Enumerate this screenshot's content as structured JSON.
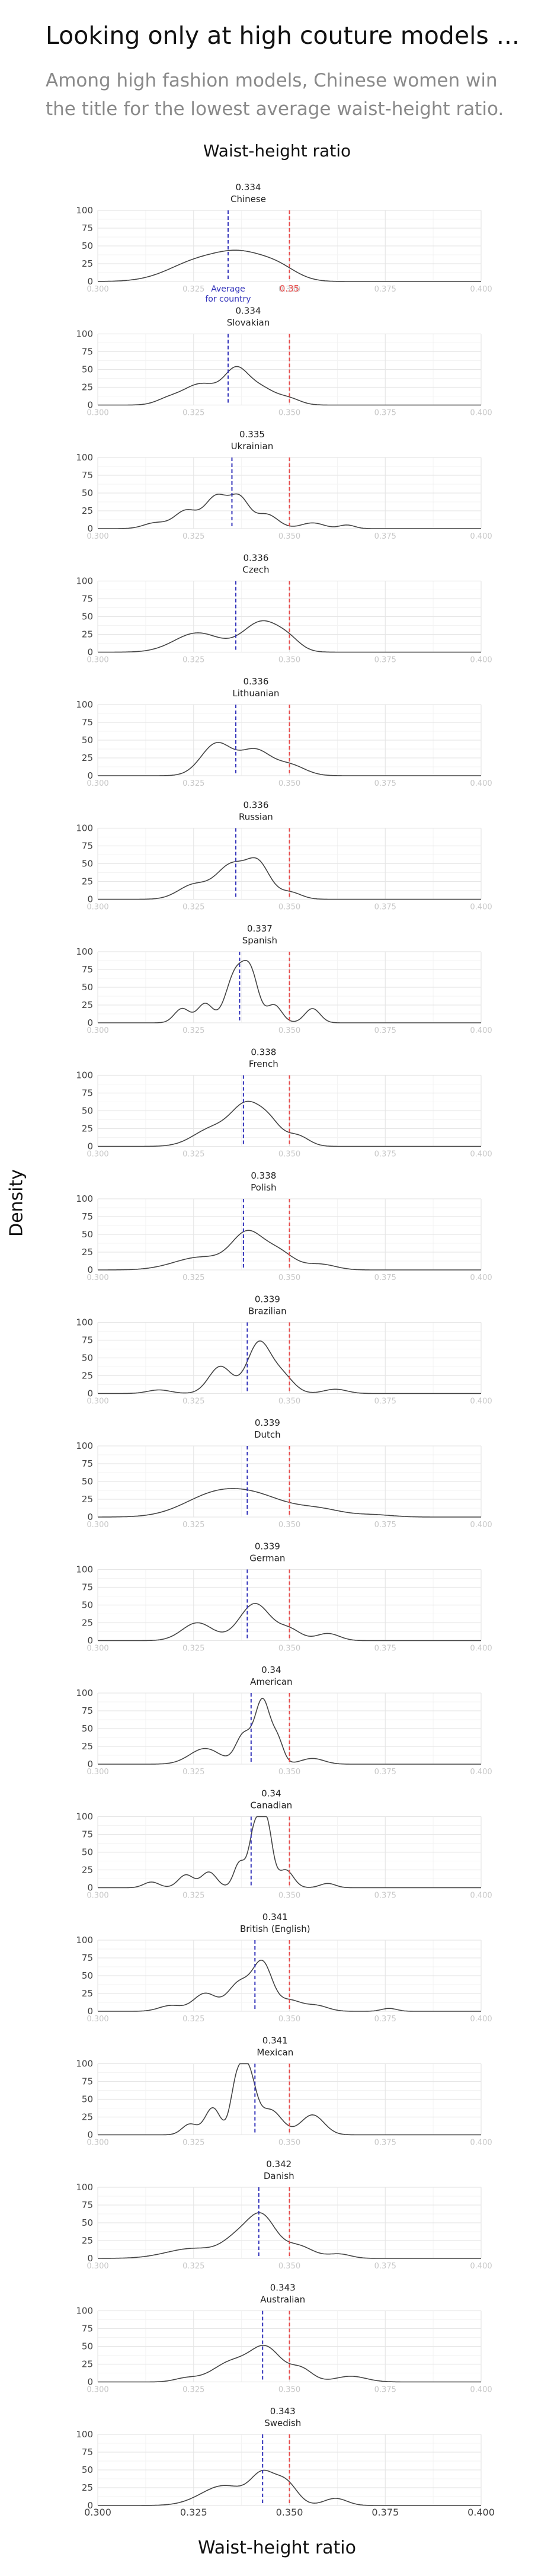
{
  "title": "Looking only at high couture models ...",
  "subtitle": "Among high fashion models, Chinese women win the title for the lowest average waist-height ratio.",
  "top_heading": "Waist-height ratio",
  "chart_data": {
    "type": "area",
    "xlabel": "Waist-height ratio",
    "ylabel": "Density",
    "xlim": [
      0.3,
      0.4
    ],
    "ylim": [
      0,
      100
    ],
    "x_ticks": [
      "0.300",
      "0.325",
      "0.350",
      "0.375",
      "0.400"
    ],
    "y_ticks": [
      "0",
      "25",
      "50",
      "75",
      "100"
    ],
    "reference_line": {
      "value": 0.35,
      "label": "0.35",
      "color": "#e84a4a"
    },
    "average_annotation": "Average\nfor country",
    "mean_line_color": "#3333bb",
    "curve_color": "#444444",
    "grid": true,
    "panels": [
      {
        "name": "Chinese",
        "mean": 0.334,
        "mean_label": "0.334",
        "bumps": [
          [
            0.327,
            0.008,
            30
          ],
          [
            0.338,
            0.006,
            28
          ],
          [
            0.347,
            0.005,
            18
          ]
        ]
      },
      {
        "name": "Slovakian",
        "mean": 0.334,
        "mean_label": "0.334",
        "bumps": [
          [
            0.318,
            0.003,
            6
          ],
          [
            0.327,
            0.005,
            30
          ],
          [
            0.336,
            0.003,
            40
          ],
          [
            0.342,
            0.004,
            25
          ],
          [
            0.35,
            0.003,
            8
          ]
        ]
      },
      {
        "name": "Ukrainian",
        "mean": 0.335,
        "mean_label": "0.335",
        "bumps": [
          [
            0.315,
            0.003,
            8
          ],
          [
            0.323,
            0.003,
            25
          ],
          [
            0.331,
            0.003,
            45
          ],
          [
            0.337,
            0.0025,
            40
          ],
          [
            0.344,
            0.003,
            20
          ],
          [
            0.356,
            0.003,
            8
          ],
          [
            0.365,
            0.002,
            5
          ]
        ]
      },
      {
        "name": "Czech",
        "mean": 0.336,
        "mean_label": "0.336",
        "bumps": [
          [
            0.326,
            0.006,
            27
          ],
          [
            0.343,
            0.005,
            43
          ],
          [
            0.35,
            0.003,
            10
          ]
        ]
      },
      {
        "name": "Lithuanian",
        "mean": 0.336,
        "mean_label": "0.336",
        "bumps": [
          [
            0.331,
            0.004,
            45
          ],
          [
            0.341,
            0.004,
            35
          ],
          [
            0.35,
            0.004,
            15
          ]
        ]
      },
      {
        "name": "Russian",
        "mean": 0.336,
        "mean_label": "0.336",
        "bumps": [
          [
            0.325,
            0.004,
            20
          ],
          [
            0.335,
            0.004,
            48
          ],
          [
            0.342,
            0.003,
            45
          ],
          [
            0.35,
            0.003,
            10
          ]
        ]
      },
      {
        "name": "Spanish",
        "mean": 0.337,
        "mean_label": "0.337",
        "bumps": [
          [
            0.322,
            0.002,
            20
          ],
          [
            0.328,
            0.002,
            27
          ],
          [
            0.336,
            0.0025,
            70
          ],
          [
            0.34,
            0.002,
            60
          ],
          [
            0.346,
            0.002,
            25
          ],
          [
            0.356,
            0.002,
            20
          ]
        ]
      },
      {
        "name": "French",
        "mean": 0.338,
        "mean_label": "0.338",
        "bumps": [
          [
            0.33,
            0.005,
            25
          ],
          [
            0.339,
            0.004,
            55
          ],
          [
            0.345,
            0.003,
            25
          ],
          [
            0.352,
            0.003,
            15
          ]
        ]
      },
      {
        "name": "Polish",
        "mean": 0.338,
        "mean_label": "0.338",
        "bumps": [
          [
            0.327,
            0.007,
            18
          ],
          [
            0.339,
            0.004,
            48
          ],
          [
            0.347,
            0.004,
            25
          ],
          [
            0.358,
            0.004,
            8
          ]
        ]
      },
      {
        "name": "Brazilian",
        "mean": 0.339,
        "mean_label": "0.339",
        "bumps": [
          [
            0.316,
            0.003,
            5
          ],
          [
            0.332,
            0.003,
            38
          ],
          [
            0.342,
            0.003,
            70
          ],
          [
            0.348,
            0.003,
            25
          ],
          [
            0.362,
            0.003,
            6
          ]
        ]
      },
      {
        "name": "Dutch",
        "mean": 0.339,
        "mean_label": "0.339",
        "bumps": [
          [
            0.33,
            0.008,
            28
          ],
          [
            0.342,
            0.008,
            25
          ],
          [
            0.358,
            0.006,
            10
          ],
          [
            0.372,
            0.005,
            3
          ]
        ]
      },
      {
        "name": "German",
        "mean": 0.339,
        "mean_label": "0.339",
        "bumps": [
          [
            0.326,
            0.004,
            25
          ],
          [
            0.341,
            0.004,
            52
          ],
          [
            0.35,
            0.003,
            15
          ],
          [
            0.36,
            0.003,
            10
          ]
        ]
      },
      {
        "name": "American",
        "mean": 0.34,
        "mean_label": "0.34",
        "bumps": [
          [
            0.328,
            0.004,
            22
          ],
          [
            0.338,
            0.002,
            40
          ],
          [
            0.343,
            0.002,
            90
          ],
          [
            0.347,
            0.0015,
            30
          ],
          [
            0.356,
            0.003,
            8
          ]
        ]
      },
      {
        "name": "Canadian",
        "mean": 0.34,
        "mean_label": "0.34",
        "bumps": [
          [
            0.314,
            0.002,
            8
          ],
          [
            0.323,
            0.002,
            18
          ],
          [
            0.329,
            0.002,
            22
          ],
          [
            0.337,
            0.0015,
            35
          ],
          [
            0.341,
            0.0015,
            82
          ],
          [
            0.344,
            0.0015,
            90
          ],
          [
            0.349,
            0.002,
            25
          ],
          [
            0.36,
            0.002,
            6
          ]
        ]
      },
      {
        "name": "British (English)",
        "mean": 0.341,
        "mean_label": "0.341",
        "bumps": [
          [
            0.319,
            0.003,
            8
          ],
          [
            0.328,
            0.003,
            25
          ],
          [
            0.337,
            0.003,
            40
          ],
          [
            0.343,
            0.0025,
            65
          ],
          [
            0.35,
            0.003,
            15
          ],
          [
            0.357,
            0.003,
            8
          ],
          [
            0.376,
            0.002,
            4
          ]
        ]
      },
      {
        "name": "Mexican",
        "mean": 0.341,
        "mean_label": "0.341",
        "bumps": [
          [
            0.324,
            0.002,
            15
          ],
          [
            0.33,
            0.002,
            38
          ],
          [
            0.336,
            0.0015,
            55
          ],
          [
            0.339,
            0.002,
            90
          ],
          [
            0.345,
            0.003,
            35
          ],
          [
            0.356,
            0.003,
            28
          ]
        ]
      },
      {
        "name": "Danish",
        "mean": 0.342,
        "mean_label": "0.342",
        "bumps": [
          [
            0.325,
            0.007,
            14
          ],
          [
            0.337,
            0.004,
            28
          ],
          [
            0.343,
            0.0035,
            52
          ],
          [
            0.352,
            0.004,
            18
          ],
          [
            0.363,
            0.003,
            6
          ]
        ]
      },
      {
        "name": "Australian",
        "mean": 0.343,
        "mean_label": "0.343",
        "bumps": [
          [
            0.323,
            0.003,
            5
          ],
          [
            0.335,
            0.005,
            28
          ],
          [
            0.344,
            0.004,
            45
          ],
          [
            0.353,
            0.003,
            18
          ],
          [
            0.366,
            0.004,
            8
          ]
        ]
      },
      {
        "name": "Swedish",
        "mean": 0.343,
        "mean_label": "0.343",
        "bumps": [
          [
            0.333,
            0.006,
            28
          ],
          [
            0.343,
            0.003,
            38
          ],
          [
            0.349,
            0.003,
            32
          ],
          [
            0.362,
            0.003,
            10
          ]
        ]
      }
    ]
  }
}
